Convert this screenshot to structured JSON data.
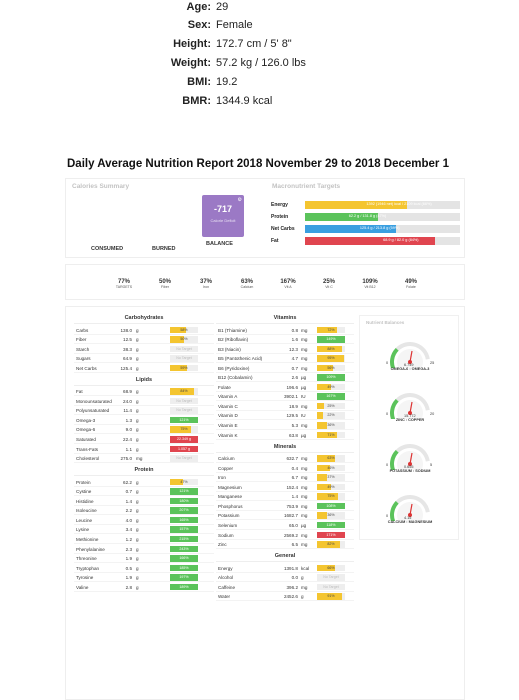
{
  "profile": {
    "age": {
      "label": "Age:",
      "value": "29"
    },
    "sex": {
      "label": "Sex:",
      "value": "Female"
    },
    "height": {
      "label": "Height:",
      "value": "172.7 cm / 5' 8\""
    },
    "weight": {
      "label": "Weight:",
      "value": "57.2 kg / 126.0 lbs"
    },
    "bmi": {
      "label": "BMI:",
      "value": "19.2"
    },
    "bmr": {
      "label": "BMR:",
      "value": "1344.9 kcal"
    }
  },
  "report_title": "Daily Average Nutrition Report 2018 November 29 to 2018 December 1",
  "summary": {
    "calories_heading": "Calories Summary",
    "macro_heading": "Macronutrient Targets",
    "balance_value": "-717",
    "balance_sub": "Calorie Deficit",
    "consumed_label": "CONSUMED",
    "burned_label": "BURNED",
    "balance_label": "BALANCE",
    "macros": [
      {
        "label": "Energy",
        "text": "1392 (1946 net) kcal / 2109 kcal (66%)",
        "percent": 66,
        "color": "#f4c530"
      },
      {
        "label": "Protein",
        "text": "62.2 g / 131.8 g (47%)",
        "percent": 47,
        "color": "#5bc35b"
      },
      {
        "label": "Net Carbs",
        "text": "125.4 g / 213.8 g (59%)",
        "percent": 59,
        "color": "#3a9fe0"
      },
      {
        "label": "Fat",
        "text": "68.9 g / 82.0 g (84%)",
        "percent": 84,
        "color": "#e0454f"
      }
    ]
  },
  "targets": [
    {
      "pct": "77%",
      "name": "TARGETS"
    },
    {
      "pct": "50%",
      "name": "Fiber"
    },
    {
      "pct": "37%",
      "name": "Iron"
    },
    {
      "pct": "63%",
      "name": "Calcium"
    },
    {
      "pct": "167%",
      "name": "Vit A"
    },
    {
      "pct": "25%",
      "name": "Vit C"
    },
    {
      "pct": "109%",
      "name": "Vit B12"
    },
    {
      "pct": "49%",
      "name": "Folate"
    }
  ],
  "tables": {
    "carbohydrates": {
      "title": "Carbohydrates",
      "rows": [
        {
          "name": "Carbs",
          "value": "138.0",
          "unit": "g",
          "text": "58%",
          "percent": 58,
          "color": "#f4c530"
        },
        {
          "name": "Fiber",
          "value": "12.5",
          "unit": "g",
          "text": "50%",
          "percent": 50,
          "color": "#f4c530"
        },
        {
          "name": "Starch",
          "value": "38.3",
          "unit": "g",
          "text": "No Target",
          "percent": 0,
          "color": ""
        },
        {
          "name": "Sugars",
          "value": "64.9",
          "unit": "g",
          "text": "No Target",
          "percent": 0,
          "color": ""
        },
        {
          "name": "Net Carbs",
          "value": "125.4",
          "unit": "g",
          "text": "59%",
          "percent": 59,
          "color": "#f4c530"
        }
      ]
    },
    "lipids": {
      "title": "Lipids",
      "rows": [
        {
          "name": "Fat",
          "value": "68.9",
          "unit": "g",
          "text": "84%",
          "percent": 84,
          "color": "#f4c530"
        },
        {
          "name": "Monounsaturated",
          "value": "24.0",
          "unit": "g",
          "text": "No Target",
          "percent": 0,
          "color": ""
        },
        {
          "name": "Polyunsaturated",
          "value": "11.4",
          "unit": "g",
          "text": "No Target",
          "percent": 0,
          "color": ""
        },
        {
          "name": "Omega-3",
          "value": "1.3",
          "unit": "g",
          "text": "121%",
          "percent": 100,
          "color": "#5bc35b"
        },
        {
          "name": "Omega-6",
          "value": "9.0",
          "unit": "g",
          "text": "75%",
          "percent": 75,
          "color": "#f4c530"
        },
        {
          "name": "Saturated",
          "value": "22.4",
          "unit": "g",
          "text": "22.349 g",
          "percent": 100,
          "color": "#e0454f"
        },
        {
          "name": "Trans-Fats",
          "value": "1.1",
          "unit": "g",
          "text": "1.057 g",
          "percent": 100,
          "color": "#e0454f"
        },
        {
          "name": "Cholesterol",
          "value": "275.0",
          "unit": "mg",
          "text": "No Target",
          "percent": 0,
          "color": ""
        }
      ]
    },
    "protein": {
      "title": "Protein",
      "rows": [
        {
          "name": "Protein",
          "value": "62.2",
          "unit": "g",
          "text": "47%",
          "percent": 47,
          "color": "#f4c530"
        },
        {
          "name": "Cystine",
          "value": "0.7",
          "unit": "g",
          "text": "121%",
          "percent": 100,
          "color": "#5bc35b"
        },
        {
          "name": "Histidine",
          "value": "1.4",
          "unit": "g",
          "text": "180%",
          "percent": 100,
          "color": "#5bc35b"
        },
        {
          "name": "Isoleucine",
          "value": "2.2",
          "unit": "g",
          "text": "207%",
          "percent": 100,
          "color": "#5bc35b"
        },
        {
          "name": "Leucine",
          "value": "4.0",
          "unit": "g",
          "text": "165%",
          "percent": 100,
          "color": "#5bc35b"
        },
        {
          "name": "Lysine",
          "value": "3.4",
          "unit": "g",
          "text": "157%",
          "percent": 100,
          "color": "#5bc35b"
        },
        {
          "name": "Methionine",
          "value": "1.2",
          "unit": "g",
          "text": "215%",
          "percent": 100,
          "color": "#5bc35b"
        },
        {
          "name": "Phenylalanine",
          "value": "2.3",
          "unit": "g",
          "text": "243%",
          "percent": 100,
          "color": "#5bc35b"
        },
        {
          "name": "Threonine",
          "value": "1.9",
          "unit": "g",
          "text": "166%",
          "percent": 100,
          "color": "#5bc35b"
        },
        {
          "name": "Tryptophan",
          "value": "0.5",
          "unit": "g",
          "text": "185%",
          "percent": 100,
          "color": "#5bc35b"
        },
        {
          "name": "Tyrosine",
          "value": "1.9",
          "unit": "g",
          "text": "197%",
          "percent": 100,
          "color": "#5bc35b"
        },
        {
          "name": "Valine",
          "value": "2.8",
          "unit": "g",
          "text": "189%",
          "percent": 100,
          "color": "#5bc35b"
        }
      ]
    },
    "vitamins": {
      "title": "Vitamins",
      "rows": [
        {
          "name": "B1 (Thiamine)",
          "value": "0.8",
          "unit": "mg",
          "text": "72%",
          "percent": 72,
          "color": "#f4c530"
        },
        {
          "name": "B2 (Riboflavin)",
          "value": "1.6",
          "unit": "mg",
          "text": "149%",
          "percent": 100,
          "color": "#5bc35b"
        },
        {
          "name": "B3 (Niacin)",
          "value": "12.3",
          "unit": "mg",
          "text": "88%",
          "percent": 88,
          "color": "#f4c530"
        },
        {
          "name": "B5 (Pantothenic Acid)",
          "value": "4.7",
          "unit": "mg",
          "text": "95%",
          "percent": 95,
          "color": "#f4c530"
        },
        {
          "name": "B6 (Pyridoxine)",
          "value": "0.7",
          "unit": "mg",
          "text": "56%",
          "percent": 56,
          "color": "#f4c530"
        },
        {
          "name": "B12 (Cobalamin)",
          "value": "2.6",
          "unit": "µg",
          "text": "109%",
          "percent": 100,
          "color": "#5bc35b"
        },
        {
          "name": "Folate",
          "value": "196.6",
          "unit": "µg",
          "text": "49%",
          "percent": 49,
          "color": "#f4c530"
        },
        {
          "name": "Vitamin A",
          "value": "3902.1",
          "unit": "IU",
          "text": "167%",
          "percent": 100,
          "color": "#5bc35b"
        },
        {
          "name": "Vitamin C",
          "value": "18.9",
          "unit": "mg",
          "text": "25%",
          "percent": 25,
          "color": "#f4c530"
        },
        {
          "name": "Vitamin D",
          "value": "129.5",
          "unit": "IU",
          "text": "22%",
          "percent": 22,
          "color": "#f4c530"
        },
        {
          "name": "Vitamin E",
          "value": "5.3",
          "unit": "mg",
          "text": "36%",
          "percent": 36,
          "color": "#f4c530"
        },
        {
          "name": "Vitamin K",
          "value": "63.8",
          "unit": "µg",
          "text": "71%",
          "percent": 71,
          "color": "#f4c530"
        }
      ]
    },
    "minerals": {
      "title": "Minerals",
      "rows": [
        {
          "name": "Calcium",
          "value": "632.7",
          "unit": "mg",
          "text": "63%",
          "percent": 63,
          "color": "#f4c530"
        },
        {
          "name": "Copper",
          "value": "0.4",
          "unit": "mg",
          "text": "46%",
          "percent": 46,
          "color": "#f4c530"
        },
        {
          "name": "Iron",
          "value": "6.7",
          "unit": "mg",
          "text": "37%",
          "percent": 37,
          "color": "#f4c530"
        },
        {
          "name": "Magnesium",
          "value": "152.4",
          "unit": "mg",
          "text": "49%",
          "percent": 49,
          "color": "#f4c530"
        },
        {
          "name": "Manganese",
          "value": "1.4",
          "unit": "mg",
          "text": "75%",
          "percent": 75,
          "color": "#f4c530"
        },
        {
          "name": "Phosphorus",
          "value": "753.9",
          "unit": "mg",
          "text": "108%",
          "percent": 100,
          "color": "#5bc35b"
        },
        {
          "name": "Potassium",
          "value": "1682.7",
          "unit": "mg",
          "text": "36%",
          "percent": 36,
          "color": "#f4c530"
        },
        {
          "name": "Selenium",
          "value": "65.0",
          "unit": "µg",
          "text": "118%",
          "percent": 100,
          "color": "#5bc35b"
        },
        {
          "name": "Sodium",
          "value": "2569.2",
          "unit": "mg",
          "text": "171%",
          "percent": 100,
          "color": "#e0454f"
        },
        {
          "name": "Zinc",
          "value": "6.5",
          "unit": "mg",
          "text": "82%",
          "percent": 82,
          "color": "#f4c530"
        }
      ]
    },
    "general": {
      "title": "General",
      "rows": [
        {
          "name": "Energy",
          "value": "1391.8",
          "unit": "kcal",
          "text": "66%",
          "percent": 66,
          "color": "#f4c530"
        },
        {
          "name": "Alcohol",
          "value": "0.0",
          "unit": "g",
          "text": "No Target",
          "percent": 0,
          "color": ""
        },
        {
          "name": "Caffeine",
          "value": "396.2",
          "unit": "mg",
          "text": "No Target",
          "percent": 0,
          "color": ""
        },
        {
          "name": "Water",
          "value": "2452.6",
          "unit": "g",
          "text": "91%",
          "percent": 91,
          "color": "#f4c530"
        }
      ]
    }
  },
  "balances": {
    "heading": "Nutrient Balances",
    "gauges": [
      {
        "name": "OMEGA-6 : OMEGA-3",
        "left": "0",
        "right": "25",
        "value": "6.749"
      },
      {
        "name": "ZINC : COPPER",
        "left": "0",
        "right": "20",
        "value": "15.772"
      },
      {
        "name": "POTASSIUM : SODIUM",
        "left": "0",
        "right": "5",
        "value": "0.655"
      },
      {
        "name": "CALCIUM : MAGNESIUM",
        "left": "0",
        "right": "",
        "value": "4.15"
      }
    ]
  }
}
